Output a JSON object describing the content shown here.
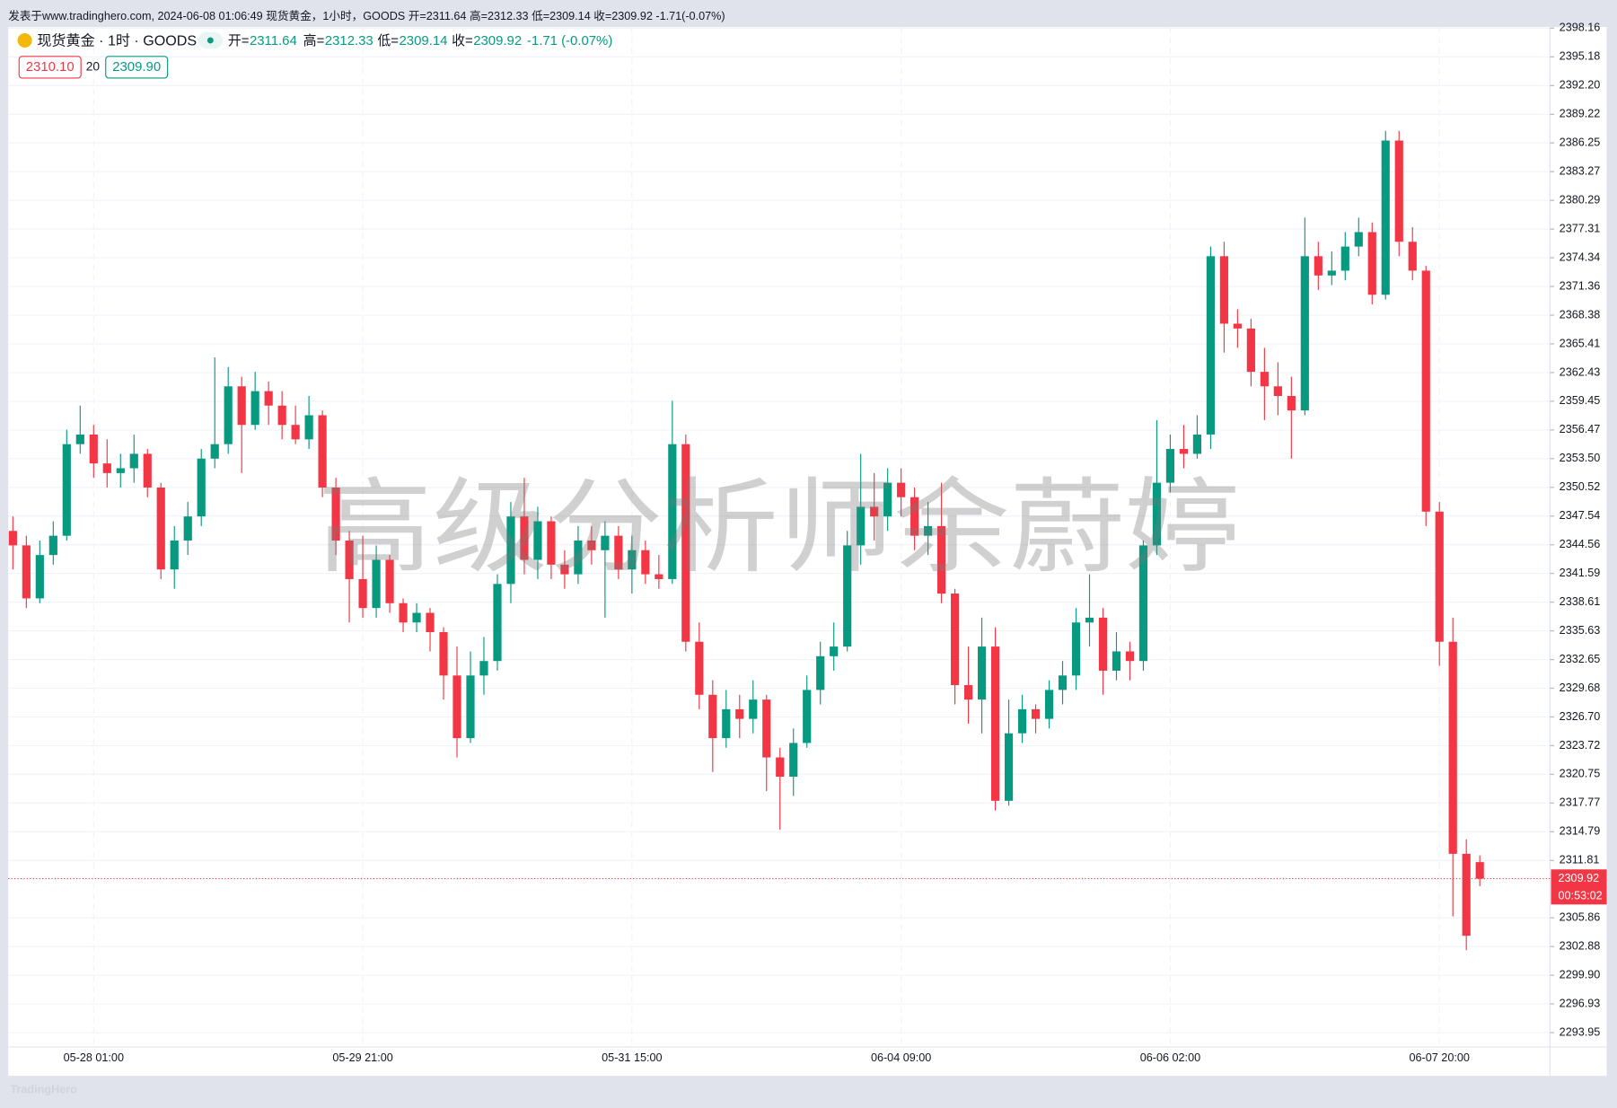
{
  "header": {
    "text": "发表于www.tradinghero.com, 2024-06-08 01:06:49 现货黄金，1小时，GOODS 开=2311.64 高=2312.33 低=2309.14 收=2309.92 -1.71(-0.07%)"
  },
  "legend": {
    "symbol": "现货黄金 · 1时 · GOODS",
    "open_key": "开=",
    "high_key": "高=",
    "low_key": "低=",
    "close_key": "收=",
    "change": "-1.71 (-0.07%)",
    "sell": "2310.10",
    "spread": "20",
    "buy": "2309.90"
  },
  "watermark": "高级分析师余蔚婷",
  "footer": "TradingHero",
  "chart_data": {
    "type": "candlestick",
    "up_color": "#089981",
    "down_color": "#f23645",
    "countdown": "00:53:02",
    "categories": [
      null,
      null,
      null,
      null,
      null,
      null,
      "05-28 01:00",
      null,
      null,
      null,
      null,
      null,
      null,
      null,
      null,
      null,
      null,
      null,
      null,
      null,
      null,
      null,
      null,
      null,
      null,
      null,
      "05-29 21:00",
      null,
      null,
      null,
      null,
      null,
      null,
      null,
      null,
      null,
      null,
      null,
      null,
      null,
      null,
      null,
      null,
      null,
      null,
      null,
      "05-31 15:00",
      null,
      null,
      null,
      null,
      null,
      null,
      null,
      null,
      null,
      null,
      null,
      null,
      null,
      null,
      null,
      null,
      null,
      null,
      null,
      "06-04 09:00",
      null,
      null,
      null,
      null,
      null,
      null,
      null,
      null,
      null,
      null,
      null,
      null,
      null,
      null,
      null,
      null,
      null,
      null,
      null,
      "06-06 02:00",
      null,
      null,
      null,
      null,
      null,
      null,
      null,
      null,
      null,
      null,
      null,
      null,
      null,
      null,
      null,
      null,
      null,
      null,
      null,
      "06-07 20:00",
      null,
      null,
      null
    ],
    "open": [
      2346.0,
      2344.5,
      2339.0,
      2343.5,
      2345.5,
      2355.0,
      2356.0,
      2353.0,
      2352.0,
      2352.5,
      2354.0,
      2350.5,
      2342.0,
      2345.0,
      2347.5,
      2353.5,
      2355.0,
      2361.0,
      2357.0,
      2360.5,
      2359.0,
      2357.0,
      2355.5,
      2358.0,
      2350.5,
      2345.0,
      2341.0,
      2338.0,
      2343.0,
      2338.5,
      2336.5,
      2337.5,
      2335.5,
      2331.0,
      2324.5,
      2331.0,
      2332.5,
      2340.5,
      2347.5,
      2343.0,
      2347.0,
      2342.5,
      2341.5,
      2345.0,
      2344.0,
      2345.5,
      2342.0,
      2344.0,
      2341.5,
      2341.0,
      2355.0,
      2334.5,
      2329.0,
      2324.5,
      2327.5,
      2326.5,
      2328.5,
      2322.5,
      2320.5,
      2324.0,
      2329.5,
      2333.0,
      2334.0,
      2344.5,
      2348.5,
      2347.5,
      2351.0,
      2349.5,
      2345.5,
      2346.5,
      2339.5,
      2330.0,
      2328.5,
      2334.0,
      2318.0,
      2325.0,
      2327.5,
      2326.5,
      2329.5,
      2331.0,
      2336.5,
      2337.0,
      2331.5,
      2333.5,
      2332.5,
      2344.5,
      2351.0,
      2354.5,
      2354.0,
      2356.0,
      2374.5,
      2367.5,
      2367.0,
      2362.5,
      2361.0,
      2360.0,
      2358.5,
      2374.5,
      2372.5,
      2373.0,
      2375.5,
      2377.0,
      2370.5,
      2386.5,
      2376.0,
      2373.0,
      2348.0,
      2334.5,
      2312.5,
      2311.64
    ],
    "high": [
      2347.5,
      2345.5,
      2345.0,
      2347.0,
      2356.5,
      2359.0,
      2357.0,
      2355.5,
      2354.0,
      2356.0,
      2354.5,
      2351.0,
      2346.5,
      2349.0,
      2354.5,
      2364.0,
      2363.0,
      2362.0,
      2362.5,
      2361.5,
      2360.5,
      2359.0,
      2360.0,
      2358.5,
      2351.5,
      2346.0,
      2345.5,
      2344.5,
      2343.5,
      2339.0,
      2338.5,
      2338.0,
      2336.0,
      2334.0,
      2333.5,
      2335.0,
      2341.5,
      2349.0,
      2351.5,
      2348.5,
      2347.5,
      2344.0,
      2346.5,
      2346.5,
      2347.0,
      2346.5,
      2345.5,
      2345.0,
      2343.5,
      2359.5,
      2356.0,
      2336.5,
      2330.5,
      2329.5,
      2329.0,
      2330.5,
      2329.0,
      2323.5,
      2325.5,
      2331.0,
      2334.5,
      2336.5,
      2346.0,
      2354.0,
      2352.0,
      2352.5,
      2352.5,
      2350.5,
      2349.0,
      2351.0,
      2340.0,
      2334.0,
      2337.0,
      2336.0,
      2328.5,
      2329.0,
      2328.0,
      2330.5,
      2332.5,
      2338.0,
      2341.5,
      2338.0,
      2335.5,
      2334.5,
      2345.0,
      2357.5,
      2356.0,
      2357.0,
      2358.0,
      2375.5,
      2376.0,
      2369.0,
      2368.0,
      2365.0,
      2363.5,
      2362.0,
      2378.5,
      2376.0,
      2375.0,
      2377.0,
      2378.5,
      2378.0,
      2387.5,
      2387.5,
      2377.5,
      2373.5,
      2349.0,
      2337.0,
      2314.0,
      2312.33
    ],
    "low": [
      2342.0,
      2338.0,
      2338.5,
      2342.5,
      2345.0,
      2354.0,
      2351.5,
      2350.5,
      2350.5,
      2351.0,
      2349.5,
      2341.0,
      2340.0,
      2343.5,
      2346.5,
      2352.5,
      2354.0,
      2352.0,
      2356.5,
      2357.0,
      2355.5,
      2355.0,
      2354.5,
      2349.5,
      2343.5,
      2336.5,
      2337.0,
      2337.0,
      2337.5,
      2335.5,
      2335.5,
      2333.5,
      2328.5,
      2322.5,
      2324.0,
      2329.0,
      2331.5,
      2338.5,
      2341.5,
      2341.0,
      2341.0,
      2340.0,
      2340.5,
      2342.5,
      2337.0,
      2341.0,
      2339.5,
      2340.5,
      2340.0,
      2340.5,
      2333.5,
      2327.5,
      2321.0,
      2323.5,
      2324.5,
      2325.0,
      2319.0,
      2315.0,
      2318.5,
      2323.5,
      2328.0,
      2331.5,
      2333.5,
      2342.5,
      2345.0,
      2346.0,
      2347.5,
      2344.0,
      2343.5,
      2338.5,
      2328.0,
      2326.0,
      2325.0,
      2317.0,
      2317.5,
      2324.0,
      2325.0,
      2325.5,
      2328.0,
      2329.5,
      2334.0,
      2329.0,
      2330.5,
      2330.5,
      2331.5,
      2343.5,
      2350.0,
      2352.5,
      2353.5,
      2354.5,
      2364.5,
      2365.0,
      2361.0,
      2357.5,
      2358.0,
      2353.5,
      2358.0,
      2371.0,
      2371.5,
      2372.0,
      2374.5,
      2369.5,
      2370.0,
      2374.5,
      2372.0,
      2346.5,
      2332.0,
      2306.0,
      2302.5,
      2309.14
    ],
    "close": [
      2344.5,
      2339.0,
      2343.5,
      2345.5,
      2355.0,
      2356.0,
      2353.0,
      2352.0,
      2352.5,
      2354.0,
      2350.5,
      2342.0,
      2345.0,
      2347.5,
      2353.5,
      2355.0,
      2361.0,
      2357.0,
      2360.5,
      2359.0,
      2357.0,
      2355.5,
      2358.0,
      2350.5,
      2345.0,
      2341.0,
      2338.0,
      2343.0,
      2338.5,
      2336.5,
      2337.5,
      2335.5,
      2331.0,
      2324.5,
      2331.0,
      2332.5,
      2340.5,
      2347.5,
      2343.0,
      2347.0,
      2342.5,
      2341.5,
      2345.0,
      2344.0,
      2345.5,
      2342.0,
      2344.0,
      2341.5,
      2341.0,
      2355.0,
      2334.5,
      2329.0,
      2324.5,
      2327.5,
      2326.5,
      2328.5,
      2322.5,
      2320.5,
      2324.0,
      2329.5,
      2333.0,
      2334.0,
      2344.5,
      2348.5,
      2347.5,
      2351.0,
      2349.5,
      2345.5,
      2346.5,
      2339.5,
      2330.0,
      2328.5,
      2334.0,
      2318.0,
      2325.0,
      2327.5,
      2326.5,
      2329.5,
      2331.0,
      2336.5,
      2337.0,
      2331.5,
      2333.5,
      2332.5,
      2344.5,
      2351.0,
      2354.5,
      2354.0,
      2356.0,
      2374.5,
      2367.5,
      2367.0,
      2362.5,
      2361.0,
      2360.0,
      2358.5,
      2374.5,
      2372.5,
      2373.0,
      2375.5,
      2377.0,
      2370.5,
      2386.5,
      2376.0,
      2373.0,
      2348.0,
      2334.5,
      2312.5,
      2304.0,
      2309.92
    ],
    "ylim": [
      2292.46,
      2398.28
    ],
    "yticks": [
      2398.16,
      2395.18,
      {
        "value": 2392.2,
        "label": "2392.20"
      },
      2389.22,
      2386.25,
      2383.27,
      2380.29,
      2377.31,
      2374.34,
      2371.36,
      2368.38,
      2365.41,
      2362.43,
      2359.45,
      2356.47,
      {
        "value": 2353.5,
        "label": "2353.50"
      },
      2350.52,
      2347.54,
      2344.56,
      2341.59,
      2338.61,
      2335.63,
      2332.65,
      2329.68,
      {
        "value": 2326.7,
        "label": "2326.70"
      },
      2323.72,
      2320.75,
      2317.77,
      2314.79,
      2311.81,
      2305.86,
      2302.88,
      {
        "value": 2299.9,
        "label": "2299.90"
      },
      2296.93,
      2293.95
    ],
    "grid": true
  }
}
